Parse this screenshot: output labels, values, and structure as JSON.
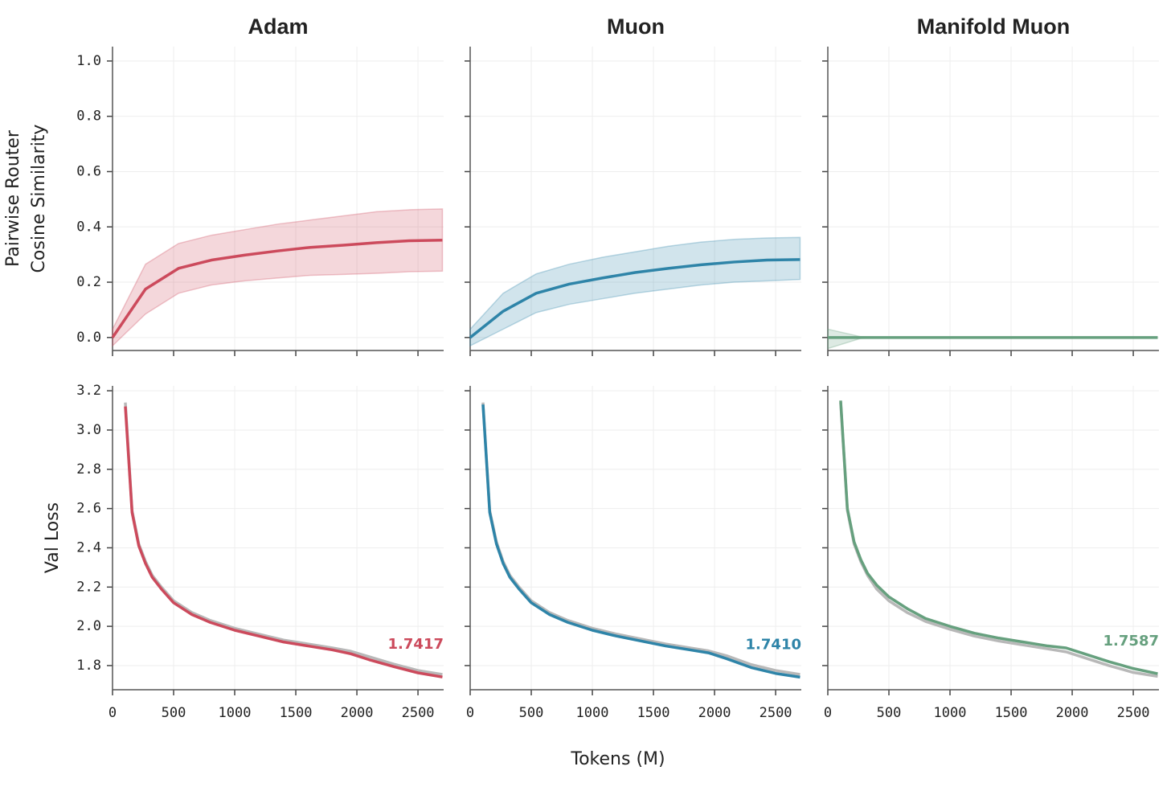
{
  "xlabel": "Tokens (M)",
  "chart_data": [
    {
      "type": "line",
      "title": "Adam",
      "ylabel": [
        "Pairwise Router",
        "Cosine Similarity"
      ],
      "x": [
        0,
        270,
        540,
        810,
        1080,
        1350,
        1620,
        1890,
        2160,
        2430,
        2700
      ],
      "series": [
        {
          "color": "#cc4a5c",
          "values": [
            0.0,
            0.175,
            0.25,
            0.28,
            0.298,
            0.313,
            0.326,
            0.334,
            0.343,
            0.35,
            0.352
          ],
          "band_lower": [
            -0.03,
            0.085,
            0.16,
            0.19,
            0.205,
            0.215,
            0.225,
            0.228,
            0.232,
            0.238,
            0.24
          ],
          "band_upper": [
            0.03,
            0.265,
            0.34,
            0.37,
            0.39,
            0.41,
            0.425,
            0.44,
            0.455,
            0.462,
            0.465
          ]
        }
      ],
      "xlim": [
        0,
        2710
      ],
      "xticks": [
        0,
        500,
        1000,
        1500,
        2000,
        2500
      ],
      "ylim": [
        -0.047,
        1.052
      ],
      "yticks": [
        {
          "value": 0,
          "label": "0.0"
        },
        0.2,
        0.4,
        0.6,
        0.8,
        {
          "value": 1,
          "label": "1.0"
        }
      ],
      "grid": true
    },
    {
      "type": "line",
      "title": "Muon",
      "x": [
        0,
        270,
        540,
        810,
        1080,
        1350,
        1620,
        1890,
        2160,
        2430,
        2700
      ],
      "series": [
        {
          "color": "#2e84a8",
          "values": [
            0.0,
            0.095,
            0.16,
            0.193,
            0.215,
            0.235,
            0.25,
            0.263,
            0.273,
            0.28,
            0.282
          ],
          "band_lower": [
            -0.03,
            0.03,
            0.09,
            0.12,
            0.14,
            0.16,
            0.175,
            0.19,
            0.2,
            0.205,
            0.21
          ],
          "band_upper": [
            0.03,
            0.16,
            0.23,
            0.265,
            0.29,
            0.31,
            0.33,
            0.345,
            0.355,
            0.36,
            0.362
          ]
        }
      ],
      "xlim": [
        0,
        2710
      ],
      "xticks": [
        0,
        500,
        1000,
        1500,
        2000,
        2500
      ],
      "ylim": [
        -0.047,
        1.052
      ],
      "yticks": [
        {
          "value": 0,
          "label": "0.0"
        },
        0.2,
        0.4,
        0.6,
        0.8,
        {
          "value": 1,
          "label": "1.0"
        }
      ],
      "grid": true
    },
    {
      "type": "line",
      "title": "Manifold Muon",
      "x": [
        0,
        270,
        540,
        810,
        1080,
        1350,
        1620,
        1890,
        2160,
        2430,
        2700
      ],
      "series": [
        {
          "color": "#66a07e",
          "values": [
            0.0,
            0.0,
            0.0,
            0.0,
            0.0,
            0.0,
            0.0,
            0.0,
            0.0,
            0.0,
            0.0
          ],
          "band_lower": [
            -0.04,
            -0.003,
            0.0,
            0.0,
            0.0,
            0.0,
            0.0,
            0.0,
            0.0,
            0.0,
            0.0
          ],
          "band_upper": [
            0.03,
            0.003,
            0.0,
            0.0,
            0.0,
            0.0,
            0.0,
            0.0,
            0.0,
            0.0,
            0.0
          ]
        }
      ],
      "xlim": [
        0,
        2710
      ],
      "xticks": [
        0,
        500,
        1000,
        1500,
        2000,
        2500
      ],
      "ylim": [
        -0.047,
        1.052
      ],
      "yticks": [
        {
          "value": 0,
          "label": "0.0"
        },
        0.2,
        0.4,
        0.6,
        0.8,
        {
          "value": 1,
          "label": "1.0"
        }
      ],
      "grid": true
    },
    {
      "type": "line",
      "ylabel": [
        "Val Loss"
      ],
      "annotation": "1.7417",
      "x": [
        105,
        160,
        215,
        270,
        325,
        400,
        500,
        650,
        800,
        1000,
        1200,
        1400,
        1600,
        1800,
        1950,
        2100,
        2300,
        2500,
        2700
      ],
      "series": [
        {
          "color": "#b8b8b8",
          "values": [
            3.14,
            2.59,
            2.42,
            2.33,
            2.26,
            2.2,
            2.13,
            2.07,
            2.03,
            1.99,
            1.96,
            1.93,
            1.91,
            1.89,
            1.873,
            1.845,
            1.808,
            1.775,
            1.755
          ]
        },
        {
          "color": "#cc4a5c",
          "values": [
            3.12,
            2.58,
            2.41,
            2.32,
            2.25,
            2.19,
            2.12,
            2.06,
            2.02,
            1.98,
            1.95,
            1.92,
            1.9,
            1.88,
            1.86,
            1.83,
            1.795,
            1.763,
            1.7417
          ]
        }
      ],
      "xlim": [
        0,
        2710
      ],
      "xticks": [
        0,
        500,
        1000,
        1500,
        2000,
        2500
      ],
      "ylim": [
        1.677,
        3.225
      ],
      "yticks": [
        1.8,
        {
          "value": 2,
          "label": "2.0"
        },
        2.2,
        2.4,
        2.6,
        2.8,
        {
          "value": 3,
          "label": "3.0"
        },
        3.2
      ],
      "grid": true
    },
    {
      "type": "line",
      "annotation": "1.7410",
      "x": [
        105,
        160,
        215,
        270,
        325,
        400,
        500,
        650,
        800,
        1000,
        1200,
        1400,
        1600,
        1800,
        1950,
        2100,
        2300,
        2500,
        2700
      ],
      "series": [
        {
          "color": "#b8b8b8",
          "values": [
            3.14,
            2.59,
            2.43,
            2.33,
            2.26,
            2.2,
            2.13,
            2.07,
            2.03,
            1.99,
            1.96,
            1.935,
            1.91,
            1.89,
            1.875,
            1.85,
            1.805,
            1.775,
            1.755
          ]
        },
        {
          "color": "#2e84a8",
          "values": [
            3.13,
            2.58,
            2.42,
            2.32,
            2.25,
            2.19,
            2.12,
            2.06,
            2.02,
            1.98,
            1.95,
            1.925,
            1.9,
            1.88,
            1.865,
            1.835,
            1.79,
            1.76,
            1.741
          ]
        }
      ],
      "xlim": [
        0,
        2710
      ],
      "xticks": [
        0,
        500,
        1000,
        1500,
        2000,
        2500
      ],
      "ylim": [
        1.677,
        3.225
      ],
      "yticks": [
        1.8,
        {
          "value": 2,
          "label": "2.0"
        },
        2.2,
        2.4,
        2.6,
        2.8,
        {
          "value": 3,
          "label": "3.0"
        },
        3.2
      ],
      "grid": true
    },
    {
      "type": "line",
      "annotation": "1.7587",
      "x": [
        105,
        160,
        215,
        270,
        325,
        400,
        500,
        650,
        800,
        1000,
        1200,
        1400,
        1600,
        1800,
        1950,
        2100,
        2300,
        2500,
        2700
      ],
      "series": [
        {
          "color": "#b8b8b8",
          "values": [
            3.14,
            2.59,
            2.42,
            2.33,
            2.26,
            2.19,
            2.13,
            2.07,
            2.025,
            1.985,
            1.95,
            1.925,
            1.905,
            1.885,
            1.87,
            1.84,
            1.8,
            1.765,
            1.745
          ]
        },
        {
          "color": "#66a07e",
          "values": [
            3.15,
            2.6,
            2.43,
            2.34,
            2.27,
            2.21,
            2.15,
            2.09,
            2.04,
            2.0,
            1.965,
            1.94,
            1.92,
            1.9,
            1.89,
            1.86,
            1.82,
            1.785,
            1.7587
          ]
        }
      ],
      "xlim": [
        0,
        2710
      ],
      "xticks": [
        0,
        500,
        1000,
        1500,
        2000,
        2500
      ],
      "ylim": [
        1.677,
        3.225
      ],
      "yticks": [
        1.8,
        {
          "value": 2,
          "label": "2.0"
        },
        2.2,
        2.4,
        2.6,
        2.8,
        {
          "value": 3,
          "label": "3.0"
        },
        3.2
      ],
      "grid": true
    }
  ]
}
